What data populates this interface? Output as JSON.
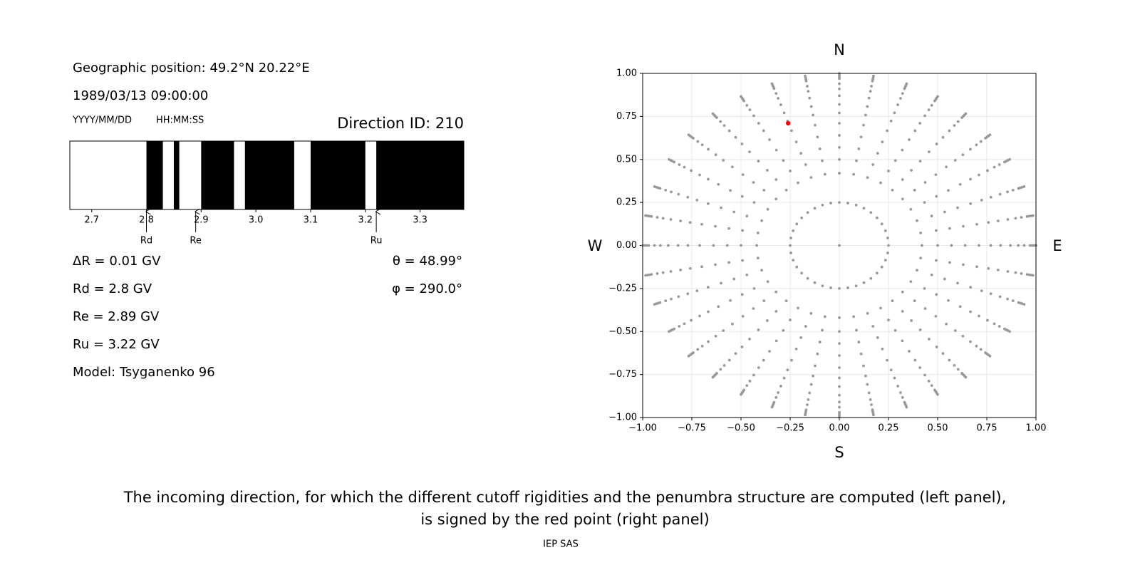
{
  "info": {
    "position": "Geographic position: 49.2°N 20.22°E",
    "datetime": "1989/03/13 09:00:00",
    "date_format": "YYYY/MM/DD",
    "time_format": "HH:MM:SS",
    "direction_id": "Direction ID: 210",
    "delta_r": "ΔR = 0.01 GV",
    "rd": "Rd = 2.8 GV",
    "re": "Re = 2.89 GV",
    "ru": "Ru = 3.22 GV",
    "model": "Model: Tsyganenko 96",
    "theta": "θ = 48.99°",
    "phi": "φ = 290.0°"
  },
  "caption": [
    "The incoming direction, for which the different cutoff rigidities and the penumbra structure are computed (left panel),",
    "is signed by the red point (right panel)"
  ],
  "footer": "IEP SAS",
  "chart_data": [
    {
      "type": "penumbra",
      "xlim": [
        2.66,
        3.38
      ],
      "xticks": [
        2.7,
        2.8,
        2.9,
        {
          "value": 3,
          "label": "3.0"
        },
        3.1,
        3.2,
        3.3
      ],
      "forbidden_color": "#000000",
      "forbidden_bands": [
        [
          2.8,
          2.83
        ],
        [
          2.85,
          2.86
        ],
        [
          2.9,
          2.96
        ],
        [
          2.98,
          3.07
        ],
        [
          3.1,
          3.2
        ],
        [
          3.22,
          3.38
        ]
      ],
      "arrows": [
        {
          "label": "Rd",
          "value": 2.8
        },
        {
          "label": "Re",
          "value": 2.89
        },
        {
          "label": "Ru",
          "value": 3.22
        }
      ]
    },
    {
      "type": "scatter",
      "xlim": [
        -1,
        1
      ],
      "ylim": [
        -1,
        1
      ],
      "xticks": [
        {
          "value": -1,
          "label": "−1.00"
        },
        {
          "value": -0.75,
          "label": "−0.75"
        },
        {
          "value": -0.5,
          "label": "−0.50"
        },
        {
          "value": -0.25,
          "label": "−0.25"
        },
        {
          "value": 0,
          "label": "0.00"
        },
        {
          "value": 0.25,
          "label": "0.25"
        },
        {
          "value": 0.5,
          "label": "0.50"
        },
        {
          "value": 0.75,
          "label": "0.75"
        },
        {
          "value": 1,
          "label": "1.00"
        }
      ],
      "yticks": [
        {
          "value": -1,
          "label": "−1.00"
        },
        {
          "value": -0.75,
          "label": "−0.75"
        },
        {
          "value": -0.5,
          "label": "−0.50"
        },
        {
          "value": -0.25,
          "label": "−0.25"
        },
        {
          "value": 0,
          "label": "0.00"
        },
        {
          "value": 0.25,
          "label": "0.25"
        },
        {
          "value": 0.5,
          "label": "0.50"
        },
        {
          "value": 0.75,
          "label": "0.75"
        },
        {
          "value": 1,
          "label": "1.00"
        }
      ],
      "grid": true,
      "compass": {
        "top": "N",
        "bottom": "S",
        "left": "W",
        "right": "E"
      },
      "grid_points": {
        "color": "#999999",
        "radii": [
          0,
          0.25,
          0.42,
          0.5,
          0.57,
          0.64,
          0.71,
          0.77,
          0.82,
          0.87,
          0.91,
          0.94,
          0.97,
          0.98,
          0.99,
          1
        ],
        "angles_deg": [
          0,
          10,
          20,
          30,
          40,
          50,
          60,
          70,
          80,
          90,
          100,
          110,
          120,
          130,
          140,
          150,
          160,
          170,
          180,
          190,
          200,
          210,
          220,
          230,
          240,
          250,
          260,
          270,
          280,
          290,
          300,
          310,
          320,
          330,
          340,
          350
        ]
      },
      "series": [
        {
          "color": "#ff0000",
          "x": [
            -0.26
          ],
          "y": [
            0.71
          ]
        }
      ]
    }
  ]
}
